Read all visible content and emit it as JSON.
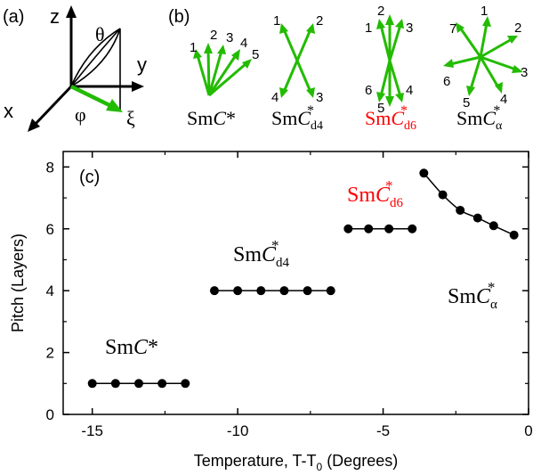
{
  "colors": {
    "arrow_green": "#22bb00",
    "red_label": "#ff0000",
    "ink": "#000000"
  },
  "panel_a": {
    "label": "(a)",
    "axes": {
      "z": "z",
      "y": "y",
      "x": "x"
    },
    "angles": {
      "theta": "θ",
      "phi": "φ"
    },
    "vector": "ξ"
  },
  "panel_b": {
    "label": "(b)",
    "structures": [
      {
        "id": "smc",
        "name": {
          "base": "Sm",
          "italic": "C",
          "sup": "*",
          "sub": ""
        },
        "numbers": [
          "1",
          "2",
          "3",
          "4",
          "5"
        ],
        "red": false
      },
      {
        "id": "d4",
        "name": {
          "base": "Sm",
          "italic": "C",
          "sup": "*",
          "sub": "d4"
        },
        "numbers": [
          "1",
          "2",
          "3",
          "4"
        ],
        "red": false
      },
      {
        "id": "d6",
        "name": {
          "base": "Sm",
          "italic": "C",
          "sup": "*",
          "sub": "d6"
        },
        "numbers": [
          "1",
          "2",
          "3",
          "4",
          "5",
          "6"
        ],
        "red": true
      },
      {
        "id": "alpha",
        "name": {
          "base": "Sm",
          "italic": "C",
          "sup": "*",
          "sub": "α"
        },
        "numbers": [
          "1",
          "2",
          "3",
          "4",
          "5",
          "6",
          "7"
        ],
        "red": false
      }
    ]
  },
  "chart_data": {
    "type": "scatter",
    "panel_label": "(c)",
    "xlabel_main": "Temperature, T-T",
    "xlabel_sub": "0",
    "xlabel_tail": " (Degrees)",
    "ylabel": "Pitch (Layers)",
    "xlim": [
      -16,
      0
    ],
    "ylim": [
      0,
      8.5
    ],
    "xticks": [
      -15,
      -10,
      -5,
      0
    ],
    "xtick_labels": [
      "-15",
      "-10",
      "-5",
      "0"
    ],
    "yticks": [
      0,
      2,
      4,
      6,
      8
    ],
    "ytick_labels": [
      "0",
      "2",
      "4",
      "6",
      "8"
    ],
    "series": [
      {
        "id": "smc",
        "label": {
          "base": "Sm",
          "italic": "C",
          "sup": "*",
          "sub": ""
        },
        "red": false,
        "x": [
          -15.0,
          -14.2,
          -13.4,
          -12.6,
          -11.8
        ],
        "y": [
          1,
          1,
          1,
          1,
          1
        ]
      },
      {
        "id": "d4",
        "label": {
          "base": "Sm",
          "italic": "C",
          "sup": "*",
          "sub": "d4"
        },
        "red": false,
        "x": [
          -10.8,
          -10.0,
          -9.2,
          -8.4,
          -7.6,
          -6.8
        ],
        "y": [
          4,
          4,
          4,
          4,
          4,
          4
        ]
      },
      {
        "id": "d6",
        "label": {
          "base": "Sm",
          "italic": "C",
          "sup": "*",
          "sub": "d6"
        },
        "red": true,
        "x": [
          -6.2,
          -5.5,
          -4.8,
          -4.0
        ],
        "y": [
          6,
          6,
          6,
          6
        ]
      },
      {
        "id": "alpha",
        "label": {
          "base": "Sm",
          "italic": "C",
          "sup": "*",
          "sub": "α"
        },
        "red": false,
        "x": [
          -3.6,
          -2.95,
          -2.35,
          -1.75,
          -1.2,
          -0.5
        ],
        "y": [
          7.8,
          7.1,
          6.6,
          6.35,
          6.1,
          5.8
        ]
      }
    ]
  }
}
